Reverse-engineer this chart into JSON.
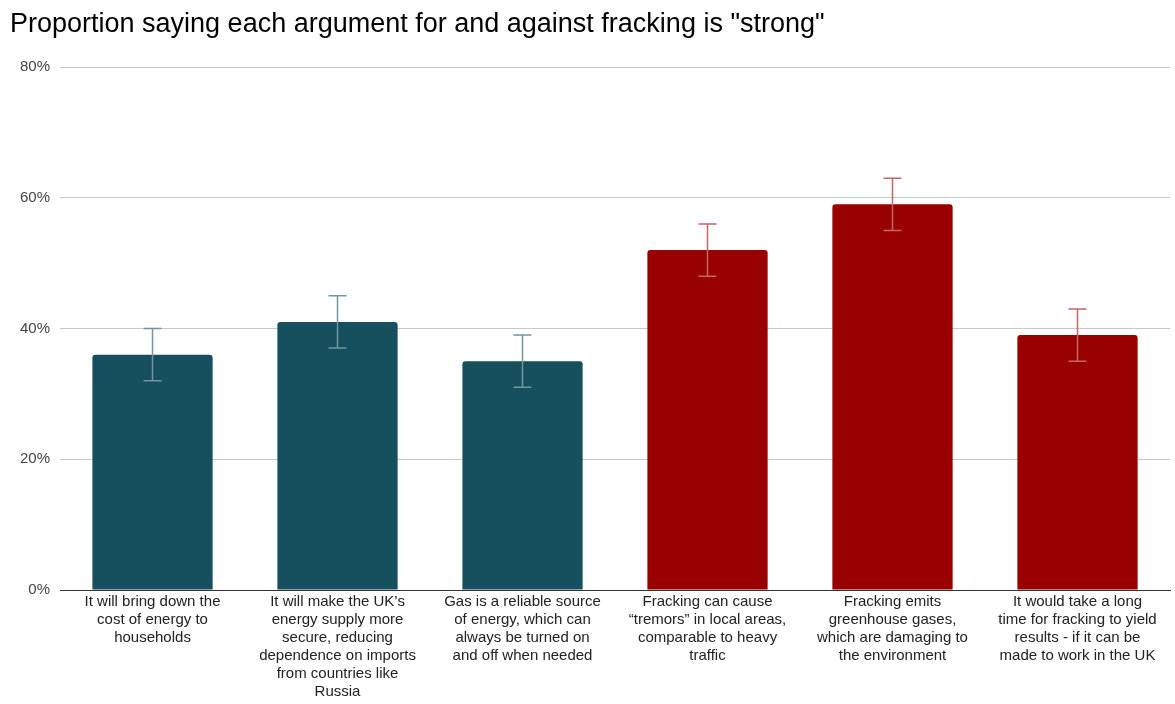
{
  "chart_data": {
    "type": "bar",
    "title": "Proportion saying each argument for and against fracking is \"strong\"",
    "categories": [
      "It will bring down the cost of energy to households",
      "It will make the UK’s energy supply more secure, reducing dependence on imports from countries like Russia",
      "Gas is a reliable source of energy, which can always be turned on and off when needed",
      "Fracking can cause “tremors” in local areas, comparable to heavy traffic",
      "Fracking emits greenhouse gases, which are damaging to the environment",
      "It would take a long time for fracking to yield results - if it can be made to work in the UK"
    ],
    "values": [
      36,
      41,
      35,
      52,
      59,
      39
    ],
    "colors": [
      "#164f5e",
      "#164f5e",
      "#164f5e",
      "#990000",
      "#990000",
      "#990000"
    ],
    "errors": [
      4,
      4,
      4,
      4,
      4,
      4
    ],
    "ylim": [
      0,
      80
    ],
    "yticks": [
      {
        "value": 0,
        "label": "0%"
      },
      {
        "value": 20,
        "label": "20%"
      },
      {
        "value": 40,
        "label": "40%"
      },
      {
        "value": 60,
        "label": "60%"
      },
      {
        "value": 80,
        "label": "80%"
      }
    ],
    "grid": "y",
    "legend": false
  }
}
